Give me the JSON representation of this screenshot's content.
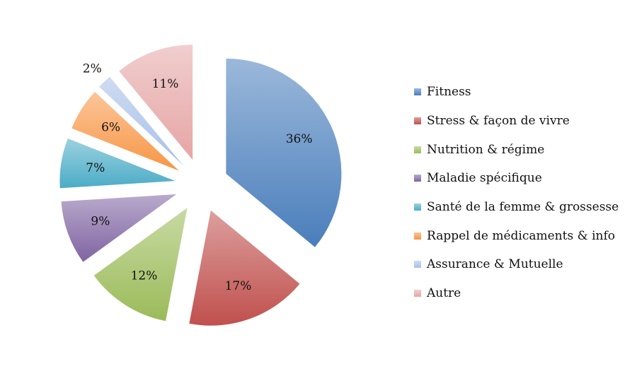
{
  "chart_data": {
    "type": "pie",
    "title": "",
    "categories": [
      "Fitness",
      "Stress & façon de vivre",
      "Nutrition & régime",
      "Maladie spécifique",
      "Santé de la femme & grossesse",
      "Rappel de médicaments & info",
      "Assurance & Mutuelle",
      "Autre"
    ],
    "values": [
      36,
      17,
      12,
      9,
      7,
      6,
      2,
      11
    ],
    "labels": [
      "36%",
      "17%",
      "12%",
      "9%",
      "7%",
      "6%",
      "2%",
      "11%"
    ],
    "colors": [
      "#4a7ebb",
      "#c0504d",
      "#9bbb59",
      "#8064a2",
      "#4bacc6",
      "#f79646",
      "#a7c0e8",
      "#e6a5a5"
    ],
    "exploded": true,
    "legend_position": "right"
  }
}
